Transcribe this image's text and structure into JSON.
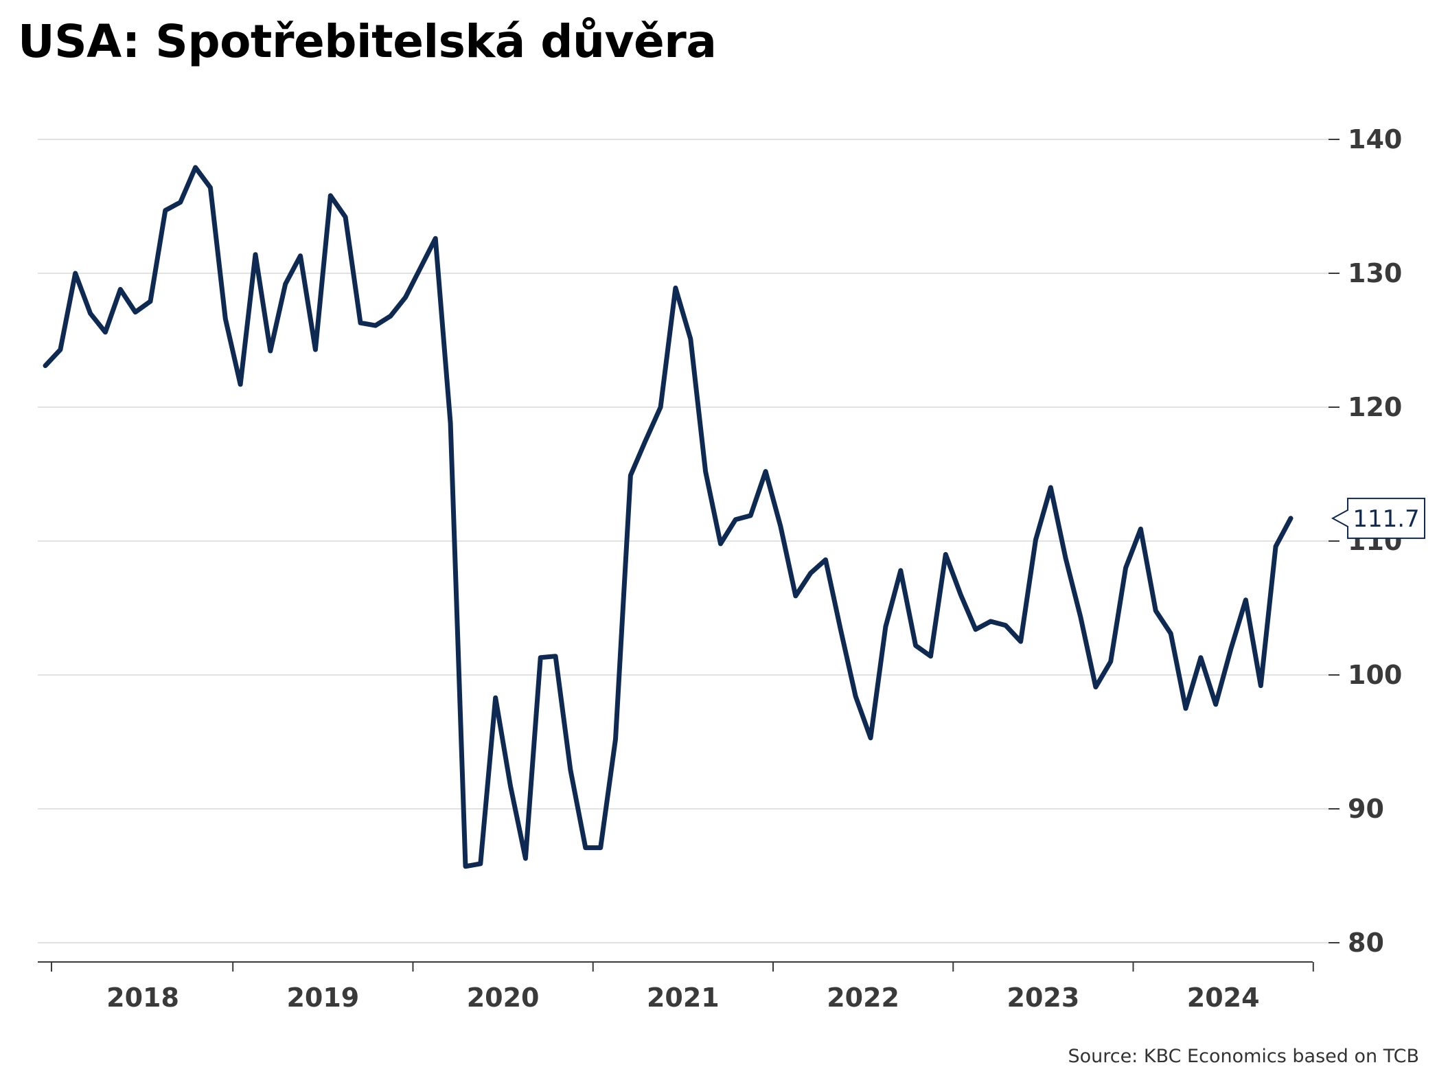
{
  "title": "USA: Spotřebitelská důvěra",
  "source": "Source: KBC Economics based on TCB",
  "colors": {
    "series": "#0f2a52",
    "grid": "#d9d9d9",
    "text": "#3a3a3a"
  },
  "chart_data": {
    "type": "line",
    "title": "USA: Spotřebitelská důvěra",
    "xlabel": "",
    "ylabel": "",
    "ylim": [
      80,
      140
    ],
    "yticks": [
      80,
      90,
      100,
      110,
      120,
      130,
      140
    ],
    "y_axis_side": "right",
    "grid": true,
    "legend": "none",
    "x_start": "2017-12",
    "x_frequency": "monthly",
    "year_labels": [
      "2018",
      "2019",
      "2020",
      "2021",
      "2022",
      "2023",
      "2024"
    ],
    "last_value_label": "111.7",
    "series": [
      {
        "values": [
          123.1,
          124.3,
          130.0,
          127.0,
          125.6,
          128.8,
          127.1,
          127.9,
          134.7,
          135.3,
          137.9,
          136.4,
          126.6,
          121.7,
          131.4,
          124.2,
          129.2,
          131.3,
          124.3,
          135.8,
          134.2,
          126.3,
          126.1,
          126.8,
          128.2,
          130.4,
          132.6,
          118.8,
          85.7,
          85.9,
          98.3,
          91.7,
          86.3,
          101.3,
          101.4,
          92.9,
          87.1,
          87.1,
          95.2,
          114.9,
          117.5,
          120.0,
          128.9,
          125.1,
          115.2,
          109.8,
          111.6,
          111.9,
          115.2,
          111.1,
          105.9,
          107.6,
          108.6,
          103.4,
          98.4,
          95.3,
          103.6,
          107.8,
          102.2,
          101.4,
          109.0,
          106.0,
          103.4,
          104.0,
          103.7,
          102.5,
          110.1,
          114.0,
          108.7,
          104.3,
          99.1,
          101.0,
          108.0,
          110.9,
          104.8,
          103.1,
          97.5,
          101.3,
          97.8,
          101.9,
          105.6,
          99.2,
          109.6,
          111.7
        ]
      }
    ]
  }
}
